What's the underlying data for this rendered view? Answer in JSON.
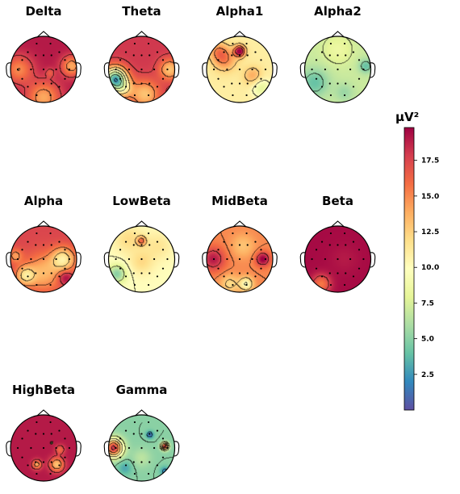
{
  "chart_data": {
    "type": "heatmap",
    "subtype": "eeg-topomap-grid",
    "colormap": "Spectral_r",
    "vmin": 0,
    "vmax": 19.8,
    "colorbar": {
      "label": "µV²",
      "ticks": [
        2.5,
        5.0,
        7.5,
        10.0,
        12.5,
        15.0,
        17.5
      ],
      "tick_labels": [
        "2.5",
        "5.0",
        "7.5",
        "10.0",
        "12.5",
        "15.0",
        "17.5"
      ]
    },
    "panels": [
      {
        "title": "Delta",
        "base": 19.0,
        "blobs": [
          [
            -0.75,
            0.0,
            0.3,
            -4.0
          ],
          [
            0.85,
            0.1,
            0.22,
            -5.0
          ],
          [
            0.0,
            -0.85,
            0.35,
            -5.0
          ],
          [
            0.2,
            -0.1,
            0.1,
            -2.0
          ]
        ]
      },
      {
        "title": "Theta",
        "base": 18.0,
        "blobs": [
          [
            -0.8,
            -0.3,
            0.25,
            -15.0
          ],
          [
            0.85,
            0.0,
            0.22,
            -5.0
          ],
          [
            0.1,
            -0.75,
            0.3,
            -5.0
          ],
          [
            -0.55,
            -0.6,
            0.2,
            -4.0
          ]
        ]
      },
      {
        "title": "Alpha1",
        "base": 11.0,
        "blobs": [
          [
            0.0,
            0.55,
            0.12,
            9.0
          ],
          [
            -0.45,
            0.3,
            0.25,
            4.0
          ],
          [
            0.4,
            -0.2,
            0.2,
            3.0
          ],
          [
            0.65,
            -0.55,
            0.2,
            -3.0
          ],
          [
            -0.65,
            0.55,
            0.2,
            3.0
          ]
        ]
      },
      {
        "title": "Alpha2",
        "base": 7.0,
        "blobs": [
          [
            -0.7,
            -0.4,
            0.3,
            -3.0
          ],
          [
            0.85,
            0.1,
            0.15,
            -3.0
          ],
          [
            0.2,
            -0.7,
            0.2,
            -1.5
          ],
          [
            0.0,
            0.6,
            0.3,
            1.5
          ]
        ]
      },
      {
        "title": "Alpha",
        "base": 17.5,
        "blobs": [
          [
            0.6,
            0.0,
            0.25,
            -6.0
          ],
          [
            0.0,
            -0.4,
            0.4,
            -4.0
          ],
          [
            -0.55,
            -0.5,
            0.2,
            -5.0
          ],
          [
            0.65,
            -0.55,
            0.15,
            3.0
          ],
          [
            -0.85,
            0.1,
            0.15,
            -3.0
          ]
        ]
      },
      {
        "title": "LowBeta",
        "base": 10.0,
        "blobs": [
          [
            0.0,
            0.55,
            0.1,
            5.0
          ],
          [
            -0.75,
            -0.45,
            0.2,
            -5.0
          ],
          [
            0.0,
            -0.1,
            0.25,
            2.0
          ],
          [
            0.5,
            0.4,
            0.3,
            1.5
          ],
          [
            -0.4,
            0.6,
            0.3,
            2.0
          ]
        ]
      },
      {
        "title": "MidBeta",
        "base": 15.0,
        "blobs": [
          [
            -0.8,
            0.0,
            0.25,
            4.0
          ],
          [
            0.7,
            0.0,
            0.15,
            5.0
          ],
          [
            0.2,
            -0.75,
            0.15,
            -5.0
          ],
          [
            -0.3,
            -0.75,
            0.2,
            -3.0
          ],
          [
            0.1,
            0.4,
            0.25,
            -2.0
          ]
        ]
      },
      {
        "title": "Beta",
        "base": 19.5,
        "blobs": [
          [
            -0.5,
            -0.75,
            0.2,
            -4.0
          ],
          [
            0.2,
            0.0,
            0.3,
            -0.5
          ]
        ]
      },
      {
        "title": "HighBeta",
        "base": 19.0,
        "blobs": [
          [
            0.25,
            0.15,
            0.02,
            -17.0
          ],
          [
            -0.2,
            -0.5,
            0.1,
            -5.0
          ],
          [
            0.4,
            -0.5,
            0.15,
            -6.0
          ],
          [
            0.5,
            -0.05,
            0.1,
            -3.0
          ]
        ]
      },
      {
        "title": "Gamma",
        "base": 5.0,
        "blobs": [
          [
            -0.85,
            0.0,
            0.2,
            13.0
          ],
          [
            0.7,
            0.05,
            0.08,
            13.0
          ],
          [
            0.25,
            0.4,
            0.08,
            -4.0
          ],
          [
            0.7,
            -0.7,
            0.1,
            -3.0
          ],
          [
            -0.5,
            -0.6,
            0.15,
            -2.0
          ],
          [
            0.0,
            -0.3,
            0.2,
            1.5
          ]
        ]
      }
    ]
  }
}
